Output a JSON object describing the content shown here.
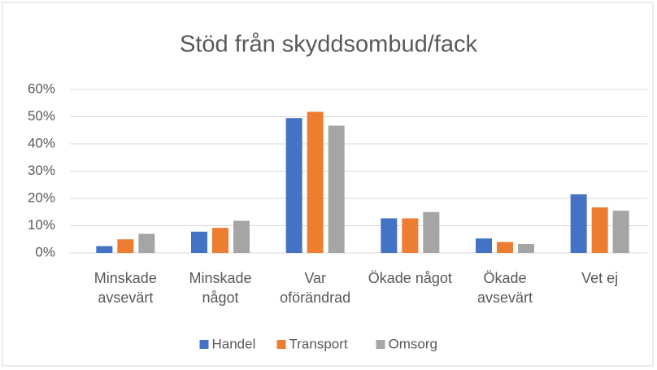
{
  "chart_data": {
    "type": "bar",
    "title": "Stöd från skyddsombud/fack",
    "categories": [
      "Minskade avsevärt",
      "Minskade något",
      "Var oförändrad",
      "Ökade något",
      "Ökade avsevärt",
      "Vet ej"
    ],
    "series": [
      {
        "name": "Handel",
        "color": "#4472c4",
        "values": [
          2.5,
          7.8,
          49.5,
          12.7,
          5.3,
          21.5
        ]
      },
      {
        "name": "Transport",
        "color": "#ed7d31",
        "values": [
          5,
          9.2,
          51.8,
          12.7,
          4,
          16.7
        ]
      },
      {
        "name": "Omsorg",
        "color": "#a5a5a5",
        "values": [
          7,
          11.8,
          46.7,
          15,
          3.3,
          15.5
        ]
      }
    ],
    "ylim": [
      0,
      60
    ],
    "yticks": [
      {
        "value": 0,
        "label": "0%"
      },
      {
        "value": 10,
        "label": "10%"
      },
      {
        "value": 20,
        "label": "20%"
      },
      {
        "value": 30,
        "label": "30%"
      },
      {
        "value": 40,
        "label": "40%"
      },
      {
        "value": 50,
        "label": "50%"
      },
      {
        "value": 60,
        "label": "60%"
      }
    ],
    "grid": true,
    "legend": "bottom"
  }
}
